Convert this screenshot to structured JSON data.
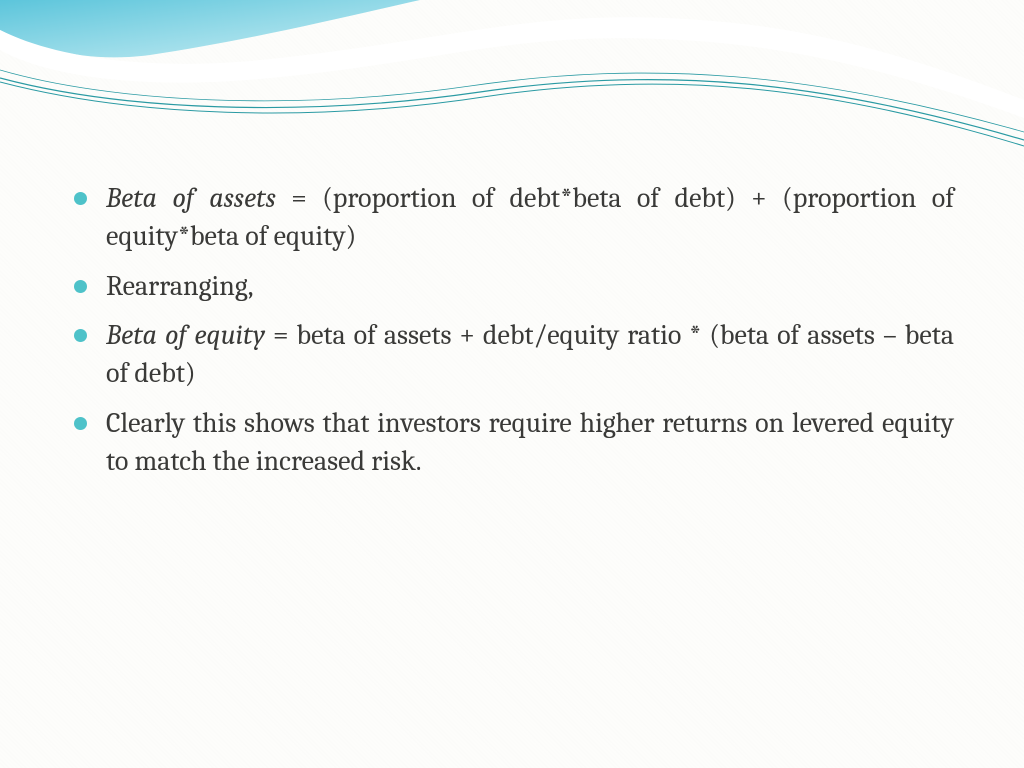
{
  "slide": {
    "type": "presentation-slide",
    "background_color": "#fdfdfb",
    "texture": "subtle-diagonal-lines",
    "header_wave": {
      "gradient_start": "#5cc5db",
      "gradient_end": "#cbeef4",
      "stroke_thin": "#2a9aa3",
      "stroke_white": "#ffffff",
      "corner_fill_top": "#8fd7e4",
      "corner_fill_bottom": "#b8e7ef"
    },
    "bullet_color": "#4ec2c9",
    "text_color": "#3a3a38",
    "font_family": "Cambria, Georgia, serif",
    "font_size_pt": 21,
    "line_height": 1.35,
    "text_align": "justify",
    "bullets": [
      {
        "runs": [
          {
            "text": "Beta of assets",
            "italic": true
          },
          {
            "text": " = (proportion of debt*beta of debt) + (proportion of equity*beta of equity)",
            "italic": false
          }
        ]
      },
      {
        "runs": [
          {
            "text": "Rearranging,",
            "italic": false
          }
        ]
      },
      {
        "runs": [
          {
            "text": "Beta of equity",
            "italic": true
          },
          {
            "text": " = beta of assets + debt/equity ratio * (beta of assets – beta of debt)",
            "italic": false
          }
        ]
      },
      {
        "runs": [
          {
            "text": "Clearly this shows that investors require higher returns on levered equity to match the increased risk.",
            "italic": false
          }
        ]
      }
    ]
  }
}
